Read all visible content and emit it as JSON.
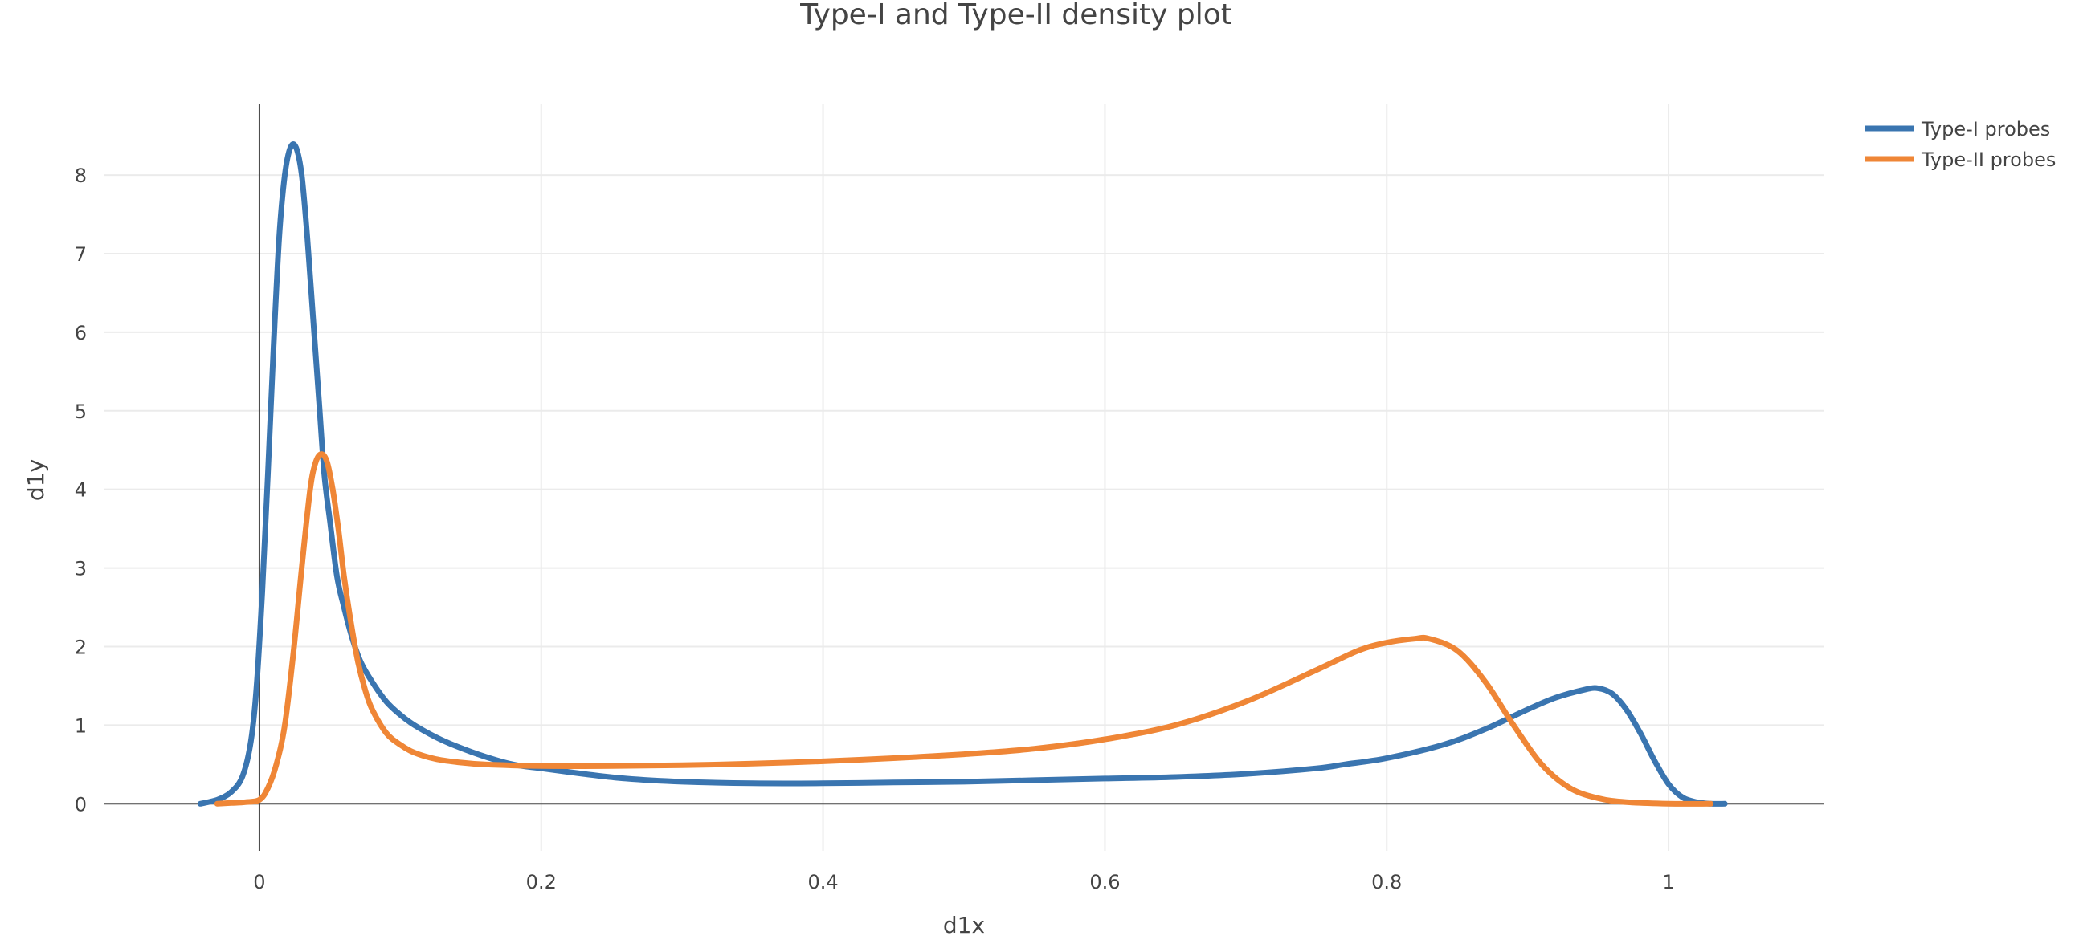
{
  "chart_data": {
    "type": "line",
    "title": "Type-I and Type-II density plot",
    "xlabel": "d1x",
    "ylabel": "d1y",
    "xlim": [
      -0.11,
      1.11
    ],
    "ylim": [
      -0.6,
      8.9
    ],
    "xticks": [
      0,
      0.2,
      0.4,
      0.6,
      0.8,
      1
    ],
    "xtick_labels": [
      "0",
      "0.2",
      "0.4",
      "0.6",
      "0.8",
      "1"
    ],
    "yticks": [
      0,
      1,
      2,
      3,
      4,
      5,
      6,
      7,
      8
    ],
    "ytick_labels": [
      "0",
      "1",
      "2",
      "3",
      "4",
      "5",
      "6",
      "7",
      "8"
    ],
    "grid": true,
    "legend_position": "top-right",
    "series": [
      {
        "name": "Type-I probes",
        "color": "#3a75b0",
        "x": [
          -0.042,
          -0.03,
          -0.02,
          -0.012,
          -0.006,
          -0.002,
          0.002,
          0.006,
          0.01,
          0.014,
          0.018,
          0.022,
          0.026,
          0.03,
          0.034,
          0.038,
          0.042,
          0.046,
          0.05,
          0.055,
          0.06,
          0.066,
          0.072,
          0.08,
          0.09,
          0.1,
          0.11,
          0.125,
          0.14,
          0.16,
          0.18,
          0.2,
          0.23,
          0.26,
          0.3,
          0.35,
          0.4,
          0.45,
          0.5,
          0.55,
          0.6,
          0.65,
          0.7,
          0.75,
          0.77,
          0.8,
          0.84,
          0.87,
          0.9,
          0.92,
          0.94,
          0.95,
          0.96,
          0.97,
          0.98,
          0.99,
          1.0,
          1.01,
          1.02,
          1.03,
          1.04
        ],
        "y": [
          0.0,
          0.05,
          0.15,
          0.35,
          0.8,
          1.5,
          2.7,
          4.2,
          5.8,
          7.2,
          8.0,
          8.35,
          8.35,
          8.0,
          7.2,
          6.2,
          5.2,
          4.2,
          3.6,
          2.9,
          2.5,
          2.1,
          1.8,
          1.55,
          1.3,
          1.13,
          1.0,
          0.85,
          0.73,
          0.6,
          0.5,
          0.45,
          0.38,
          0.32,
          0.28,
          0.26,
          0.26,
          0.27,
          0.28,
          0.3,
          0.32,
          0.34,
          0.38,
          0.45,
          0.5,
          0.58,
          0.75,
          0.95,
          1.2,
          1.35,
          1.45,
          1.47,
          1.4,
          1.2,
          0.9,
          0.55,
          0.25,
          0.08,
          0.02,
          0.0,
          0.0
        ]
      },
      {
        "name": "Type-II probes",
        "color": "#ef8636",
        "x": [
          -0.03,
          -0.02,
          -0.01,
          0.0,
          0.006,
          0.012,
          0.018,
          0.024,
          0.03,
          0.036,
          0.04,
          0.044,
          0.048,
          0.052,
          0.056,
          0.06,
          0.065,
          0.07,
          0.075,
          0.08,
          0.09,
          0.1,
          0.11,
          0.125,
          0.14,
          0.16,
          0.2,
          0.25,
          0.3,
          0.35,
          0.4,
          0.45,
          0.5,
          0.55,
          0.6,
          0.65,
          0.7,
          0.75,
          0.78,
          0.8,
          0.82,
          0.83,
          0.85,
          0.87,
          0.89,
          0.91,
          0.93,
          0.95,
          0.97,
          1.0,
          1.03
        ],
        "y": [
          0.0,
          0.01,
          0.02,
          0.05,
          0.2,
          0.5,
          1.0,
          1.9,
          3.0,
          4.0,
          4.35,
          4.45,
          4.35,
          4.0,
          3.5,
          2.9,
          2.3,
          1.8,
          1.45,
          1.2,
          0.9,
          0.75,
          0.65,
          0.57,
          0.53,
          0.5,
          0.48,
          0.48,
          0.49,
          0.51,
          0.54,
          0.58,
          0.63,
          0.7,
          0.82,
          1.0,
          1.3,
          1.7,
          1.95,
          2.05,
          2.1,
          2.1,
          1.95,
          1.55,
          1.0,
          0.5,
          0.2,
          0.07,
          0.02,
          0.0,
          0.0
        ]
      }
    ]
  }
}
